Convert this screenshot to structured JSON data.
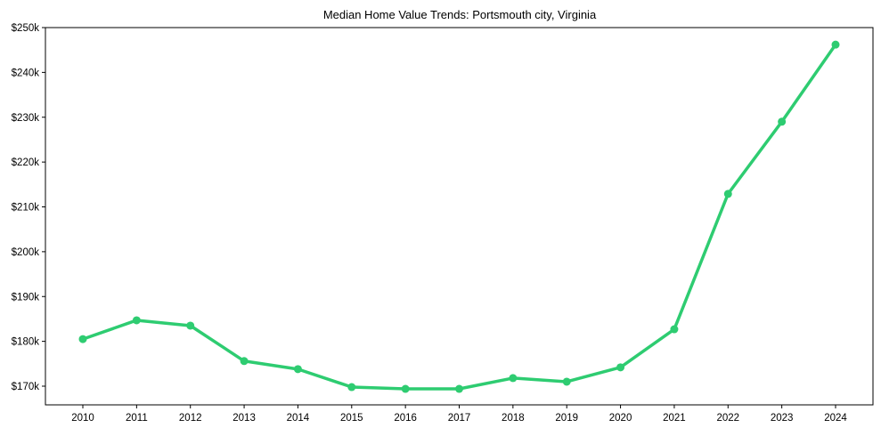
{
  "chart_data": {
    "type": "line",
    "title": "Median Home Value Trends: Portsmouth city, Virginia",
    "xlabel": "",
    "ylabel": "",
    "categories": [
      "2010",
      "2011",
      "2012",
      "2013",
      "2014",
      "2015",
      "2016",
      "2017",
      "2018",
      "2019",
      "2020",
      "2021",
      "2022",
      "2023",
      "2024"
    ],
    "series": [
      {
        "name": "Median Home Value",
        "color": "#2ecc71",
        "values": [
          180500,
          184700,
          183500,
          175600,
          173800,
          169800,
          169400,
          169400,
          171800,
          171000,
          174200,
          182700,
          212900,
          229000,
          246200
        ]
      }
    ],
    "yticks": [
      170000,
      180000,
      190000,
      200000,
      210000,
      220000,
      230000,
      240000,
      250000
    ],
    "ytick_labels": [
      "$170k",
      "$180k",
      "$190k",
      "$200k",
      "$210k",
      "$220k",
      "$230k",
      "$240k",
      "$250k"
    ],
    "ylim": [
      165800,
      250000
    ],
    "grid": false,
    "legend": "none",
    "markers": true
  }
}
